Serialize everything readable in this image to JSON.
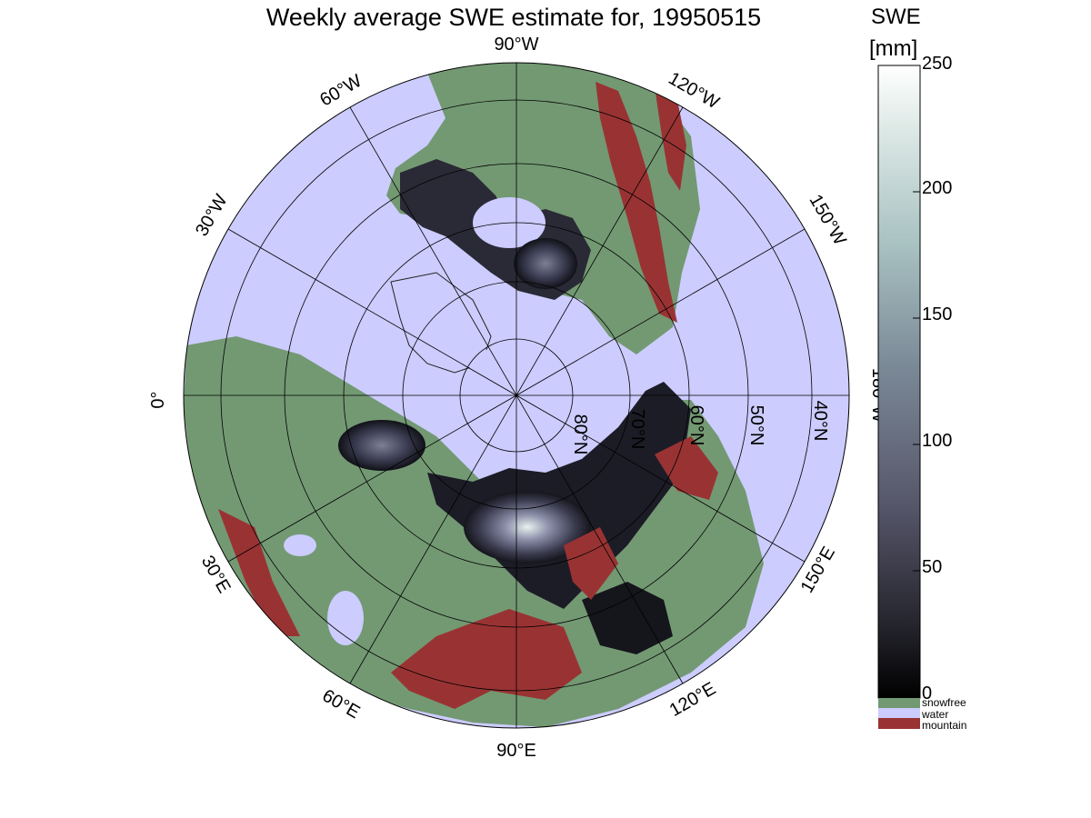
{
  "title": "Weekly average SWE estimate for, 19950515",
  "colorbar": {
    "unit_line1": "SWE",
    "unit_line2": "[mm]",
    "ticks": [
      "0",
      "50",
      "100",
      "150",
      "200",
      "250"
    ],
    "categories": [
      {
        "label": "snowfree",
        "color": "#739973"
      },
      {
        "label": "water",
        "color": "#ccccff"
      },
      {
        "label": "mountain",
        "color": "#993333"
      }
    ]
  },
  "map": {
    "projection": "north polar stereographic",
    "longitude_labels": [
      "90°W",
      "120°W",
      "150°W",
      "180°W",
      "150°E",
      "120°E",
      "90°E",
      "60°E",
      "30°E",
      "0°",
      "30°W",
      "60°W"
    ],
    "latitude_labels": [
      "80°N",
      "70°N",
      "60°N",
      "50°N",
      "40°N"
    ],
    "colors": {
      "water": "#ccccff",
      "snowfree": "#739973",
      "mountain": "#993333",
      "swe_low": "#0a0a0c",
      "swe_high": "#ffffff"
    }
  }
}
